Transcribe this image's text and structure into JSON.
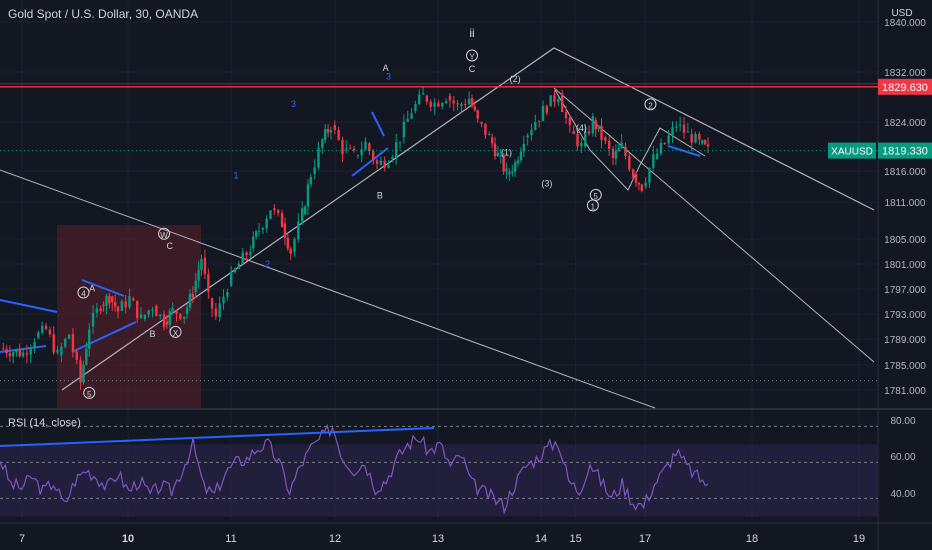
{
  "header": {
    "title": "Gold Spot / U.S. Dollar, 30, OANDA",
    "currency": "USD"
  },
  "price_tags": {
    "resistance": {
      "value": "1829.630",
      "color": "#f23645"
    },
    "last": {
      "symbol": "XAUUSD",
      "value": "1819.330",
      "color": "#089981"
    }
  },
  "rsi_panel": {
    "title": "RSI (14, close)",
    "ticks": [
      "80.00",
      "60.00",
      "40.00"
    ]
  },
  "colors": {
    "background": "#131722",
    "grid": "#1e222d",
    "up": "#089981",
    "down": "#f23645",
    "rsi_line": "#7e57c2",
    "rsi_band": "#2a2448",
    "trend_blue": "#2962ff",
    "box_fill": "#5b1f2a",
    "white_line": "#b2b5be"
  },
  "chart_data": [
    {
      "type": "candlestick",
      "title": "Gold Spot / U.S. Dollar, 30, OANDA",
      "x_ticks": [
        {
          "label": "7",
          "day": 7
        },
        {
          "label": "10",
          "day": 10
        },
        {
          "label": "11",
          "day": 11
        },
        {
          "label": "12",
          "day": 12
        },
        {
          "label": "13",
          "day": 13
        },
        {
          "label": "14",
          "day": 14
        },
        {
          "label": "15",
          "day": 15
        },
        {
          "label": "17",
          "day": 17
        },
        {
          "label": "18",
          "day": 18
        },
        {
          "label": "19",
          "day": 19
        }
      ],
      "xlim": [
        6.8,
        20.0
      ],
      "y_ticks": [
        1840,
        1832,
        1824,
        1816,
        1811,
        1805,
        1801,
        1797,
        1793,
        1789,
        1785,
        1781
      ],
      "y_tick_labels": [
        "1840.000",
        "1832.000",
        "1824.000",
        "1816.000",
        "1811.000",
        "1805.000",
        "1801.000",
        "1797.000",
        "1793.000",
        "1789.000",
        "1785.000",
        "1781.000"
      ],
      "series": [
        {
          "price_points": [
            [
              6.8,
              1787.6
            ],
            [
              7.2,
              1786.8
            ],
            [
              7.4,
              1789.2
            ],
            [
              7.6,
              1790.5
            ],
            [
              7.8,
              1786.5
            ],
            [
              8.0,
              1789.8
            ],
            [
              8.2,
              1782.2
            ],
            [
              8.35,
              1791.0
            ],
            [
              8.55,
              1794.5
            ],
            [
              8.7,
              1795.8
            ],
            [
              8.85,
              1793.5
            ],
            [
              9.05,
              1795.5
            ],
            [
              9.25,
              1792.2
            ],
            [
              9.45,
              1794.3
            ],
            [
              9.65,
              1791.8
            ],
            [
              9.8,
              1793.5
            ],
            [
              10.0,
              1793.0
            ],
            [
              10.15,
              1796.5
            ],
            [
              10.3,
              1802.0
            ],
            [
              10.42,
              1795.5
            ],
            [
              10.55,
              1792.5
            ],
            [
              10.75,
              1797.5
            ],
            [
              10.95,
              1801.0
            ],
            [
              11.15,
              1803.5
            ],
            [
              11.3,
              1806.5
            ],
            [
              11.5,
              1810.0
            ],
            [
              11.7,
              1807.5
            ],
            [
              11.85,
              1803.0
            ],
            [
              12.05,
              1809.0
            ],
            [
              12.2,
              1815.5
            ],
            [
              12.4,
              1821.0
            ],
            [
              12.55,
              1823.5
            ],
            [
              12.75,
              1819.5
            ],
            [
              12.95,
              1818.5
            ],
            [
              13.15,
              1820.5
            ],
            [
              13.35,
              1817.0
            ],
            [
              13.55,
              1818.0
            ],
            [
              13.75,
              1821.5
            ],
            [
              13.95,
              1825.8
            ],
            [
              14.15,
              1828.2
            ],
            [
              14.35,
              1827.0
            ],
            [
              14.55,
              1828.2
            ],
            [
              14.75,
              1826.5
            ],
            [
              14.95,
              1827.8
            ],
            [
              15.1,
              1824.0
            ],
            [
              15.3,
              1821.5
            ],
            [
              15.45,
              1818.5
            ],
            [
              15.6,
              1815.5
            ],
            [
              15.75,
              1817.2
            ],
            [
              15.9,
              1821.5
            ],
            [
              16.1,
              1824.2
            ],
            [
              16.3,
              1826.5
            ],
            [
              16.5,
              1828.5
            ],
            [
              16.7,
              1822.5
            ],
            [
              16.9,
              1820.0
            ],
            [
              17.1,
              1824.3
            ],
            [
              17.25,
              1821.5
            ],
            [
              17.45,
              1818.0
            ],
            [
              17.6,
              1820.0
            ],
            [
              17.8,
              1815.5
            ],
            [
              17.95,
              1813.5
            ],
            [
              18.15,
              1818.0
            ],
            [
              18.35,
              1820.5
            ],
            [
              18.55,
              1823.5
            ],
            [
              18.75,
              1822.0
            ],
            [
              18.95,
              1820.5
            ],
            [
              19.1,
              1819.3
            ]
          ]
        }
      ],
      "horizontal_lines": [
        1829.63,
        1819.33,
        1782.5
      ],
      "wave_labels": [
        {
          "text": "ii",
          "x": 15.0,
          "y": 1837.6
        },
        {
          "text": "Y",
          "x": 15.0,
          "y": 1834.0,
          "circled": true
        },
        {
          "text": "C",
          "x": 15.0,
          "y": 1832.0
        },
        {
          "text": "(2)",
          "x": 15.75,
          "y": 1830.4
        },
        {
          "text": "A",
          "x": 13.5,
          "y": 1832.2
        },
        {
          "text": "B",
          "x": 13.4,
          "y": 1811.6
        },
        {
          "text": "(1)",
          "x": 15.6,
          "y": 1818.5
        },
        {
          "text": "(4)",
          "x": 16.9,
          "y": 1822.5
        },
        {
          "text": "(3)",
          "x": 16.3,
          "y": 1813.5
        },
        {
          "text": "5",
          "x": 17.15,
          "y": 1811.5,
          "circled": true
        },
        {
          "text": "1",
          "x": 17.1,
          "y": 1809.8,
          "circled": true
        },
        {
          "text": "2",
          "x": 18.1,
          "y": 1826.2,
          "circled": true
        },
        {
          "text": "3",
          "x": 11.9,
          "y": 1826.4,
          "color": "#2962ff"
        },
        {
          "text": "1",
          "x": 10.9,
          "y": 1814.8,
          "color": "#2962ff"
        },
        {
          "text": "2",
          "x": 11.45,
          "y": 1800.5,
          "color": "#2962ff"
        },
        {
          "text": "3",
          "x": 13.55,
          "y": 1830.8,
          "color": "#2962ff"
        },
        {
          "text": "W",
          "x": 9.65,
          "y": 1805.2,
          "circled": true
        },
        {
          "text": "C",
          "x": 9.75,
          "y": 1803.4
        },
        {
          "text": "X",
          "x": 9.85,
          "y": 1789.5,
          "circled": true
        },
        {
          "text": "B",
          "x": 9.45,
          "y": 1789.3
        },
        {
          "text": "4",
          "x": 8.25,
          "y": 1795.8,
          "circled": true
        },
        {
          "text": "A",
          "x": 8.4,
          "y": 1796.6
        },
        {
          "text": "5",
          "x": 8.35,
          "y": 1779.9,
          "circled": true
        }
      ]
    },
    {
      "type": "line",
      "title": "RSI (14, close)",
      "ylim": [
        28,
        88
      ],
      "y_ticks": [
        80,
        60,
        40
      ],
      "band": [
        30,
        70
      ],
      "series": [
        {
          "values": [
            62,
            48,
            46,
            52,
            44,
            49,
            36,
            50,
            56,
            52,
            46,
            54,
            44,
            50,
            42,
            47,
            44,
            56,
            70,
            46,
            42,
            54,
            60,
            62,
            68,
            70,
            60,
            44,
            58,
            68,
            74,
            80,
            62,
            56,
            60,
            46,
            50,
            62,
            70,
            74,
            66,
            70,
            58,
            64,
            48,
            44,
            40,
            36,
            48,
            58,
            62,
            68,
            72,
            50,
            44,
            60,
            50,
            40,
            48,
            38,
            36,
            48,
            56,
            66,
            58,
            52,
            48
          ]
        }
      ]
    }
  ]
}
